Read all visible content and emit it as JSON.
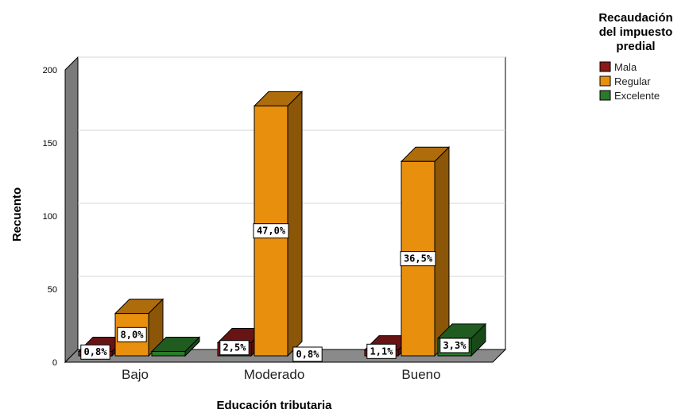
{
  "chart_data": {
    "type": "bar",
    "xlabel": "Educación tributaria",
    "ylabel": "Recuento",
    "ylim": [
      0,
      200
    ],
    "yticks": [
      0,
      50,
      100,
      150,
      200
    ],
    "grid": true,
    "legend_position": "top-right",
    "legend_title": [
      "Recaudación",
      "del impuesto",
      "predial"
    ],
    "categories": [
      "Bajo",
      "Moderado",
      "Bueno"
    ],
    "series": [
      {
        "name": "Mala",
        "color": "#8b1a1a",
        "values": [
          3,
          9,
          4
        ],
        "labels": [
          "0,8%",
          "2,5%",
          "1,1%"
        ]
      },
      {
        "name": "Regular",
        "color": "#e8900e",
        "values": [
          29,
          171,
          133
        ],
        "labels": [
          "8,0%",
          "47,0%",
          "36,5%"
        ]
      },
      {
        "name": "Excelente",
        "color": "#2a7a2a",
        "values": [
          3,
          null,
          12
        ],
        "labels": [
          "",
          "0,8%",
          "3,3%"
        ]
      }
    ]
  }
}
